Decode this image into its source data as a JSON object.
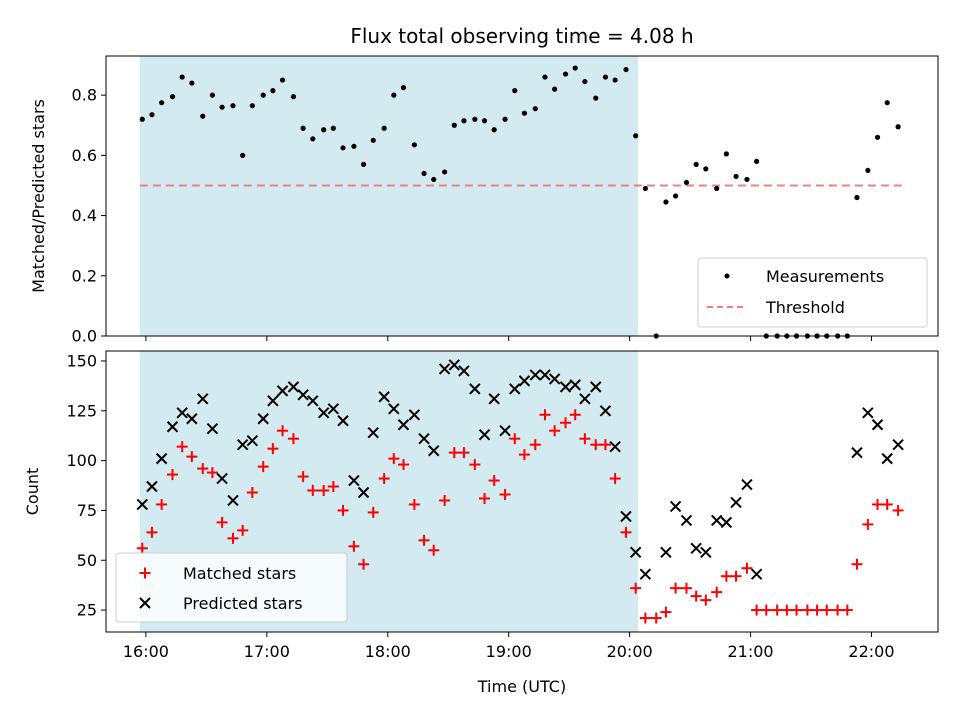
{
  "chart_data": [
    {
      "type": "scatter",
      "title": "Flux total observing time = 4.08 h",
      "xlabel": "",
      "ylabel": "Matched/Predicted stars",
      "ylim": [
        0,
        0.93
      ],
      "yticks": [
        0.0,
        0.2,
        0.4,
        0.6,
        0.8
      ],
      "ytick_labels": [
        "0.0",
        "0.2",
        "0.4",
        "0.6",
        "0.8"
      ],
      "shaded_x_range": [
        15.95,
        20.07
      ],
      "shade_color": "#d3eaf1",
      "legend": {
        "location": "lower-right",
        "entries": [
          "Measurements",
          "Threshold"
        ]
      },
      "threshold": {
        "name": "Threshold",
        "value": 0.5,
        "x_range": [
          15.95,
          22.25
        ],
        "color": "#f08080"
      },
      "series": [
        {
          "name": "Measurements",
          "marker": "dot",
          "color": "#000000",
          "points": [
            [
              15.97,
              0.72
            ],
            [
              16.05,
              0.735
            ],
            [
              16.13,
              0.775
            ],
            [
              16.22,
              0.795
            ],
            [
              16.3,
              0.86
            ],
            [
              16.38,
              0.84
            ],
            [
              16.47,
              0.73
            ],
            [
              16.55,
              0.8
            ],
            [
              16.63,
              0.76
            ],
            [
              16.72,
              0.765
            ],
            [
              16.8,
              0.6
            ],
            [
              16.88,
              0.765
            ],
            [
              16.97,
              0.8
            ],
            [
              17.05,
              0.815
            ],
            [
              17.13,
              0.85
            ],
            [
              17.22,
              0.795
            ],
            [
              17.3,
              0.69
            ],
            [
              17.38,
              0.655
            ],
            [
              17.47,
              0.685
            ],
            [
              17.55,
              0.69
            ],
            [
              17.63,
              0.625
            ],
            [
              17.72,
              0.63
            ],
            [
              17.8,
              0.57
            ],
            [
              17.88,
              0.65
            ],
            [
              17.97,
              0.69
            ],
            [
              18.05,
              0.8
            ],
            [
              18.13,
              0.825
            ],
            [
              18.22,
              0.635
            ],
            [
              18.3,
              0.54
            ],
            [
              18.38,
              0.52
            ],
            [
              18.47,
              0.545
            ],
            [
              18.55,
              0.7
            ],
            [
              18.63,
              0.715
            ],
            [
              18.72,
              0.72
            ],
            [
              18.8,
              0.715
            ],
            [
              18.88,
              0.685
            ],
            [
              18.97,
              0.72
            ],
            [
              19.05,
              0.815
            ],
            [
              19.13,
              0.74
            ],
            [
              19.22,
              0.755
            ],
            [
              19.3,
              0.86
            ],
            [
              19.38,
              0.82
            ],
            [
              19.47,
              0.87
            ],
            [
              19.55,
              0.89
            ],
            [
              19.63,
              0.845
            ],
            [
              19.72,
              0.79
            ],
            [
              19.8,
              0.86
            ],
            [
              19.88,
              0.85
            ],
            [
              19.97,
              0.885
            ],
            [
              20.05,
              0.665
            ],
            [
              20.13,
              0.49
            ],
            [
              20.22,
              0.0
            ],
            [
              20.3,
              0.445
            ],
            [
              20.38,
              0.465
            ],
            [
              20.47,
              0.51
            ],
            [
              20.55,
              0.57
            ],
            [
              20.63,
              0.555
            ],
            [
              20.72,
              0.49
            ],
            [
              20.8,
              0.605
            ],
            [
              20.88,
              0.53
            ],
            [
              20.97,
              0.52
            ],
            [
              21.05,
              0.58
            ],
            [
              21.13,
              0.0
            ],
            [
              21.22,
              0.0
            ],
            [
              21.3,
              0.0
            ],
            [
              21.38,
              0.0
            ],
            [
              21.47,
              0.0
            ],
            [
              21.55,
              0.0
            ],
            [
              21.63,
              0.0
            ],
            [
              21.72,
              0.0
            ],
            [
              21.8,
              0.0
            ],
            [
              21.88,
              0.46
            ],
            [
              21.97,
              0.55
            ],
            [
              22.05,
              0.66
            ],
            [
              22.13,
              0.775
            ],
            [
              22.22,
              0.695
            ]
          ]
        }
      ]
    },
    {
      "type": "scatter",
      "title": "",
      "xlabel": "Time (UTC)",
      "ylabel": "Count",
      "xlim": [
        15.67,
        22.55
      ],
      "ylim": [
        14,
        155
      ],
      "yticks": [
        25,
        50,
        75,
        100,
        125,
        150
      ],
      "ytick_labels": [
        "25",
        "50",
        "75",
        "100",
        "125",
        "150"
      ],
      "xticks": [
        16,
        17,
        18,
        19,
        20,
        21,
        22
      ],
      "xtick_labels": [
        "16:00",
        "17:00",
        "18:00",
        "19:00",
        "20:00",
        "21:00",
        "22:00"
      ],
      "shaded_x_range": [
        15.95,
        20.07
      ],
      "shade_color": "#d3eaf1",
      "legend": {
        "location": "lower-left",
        "entries": [
          "Matched stars",
          "Predicted stars"
        ]
      },
      "series": [
        {
          "name": "Matched stars",
          "marker": "plus",
          "color": "#ff0000",
          "points": [
            [
              15.97,
              56
            ],
            [
              16.05,
              64
            ],
            [
              16.13,
              78
            ],
            [
              16.22,
              93
            ],
            [
              16.3,
              107
            ],
            [
              16.38,
              102
            ],
            [
              16.47,
              96
            ],
            [
              16.55,
              94
            ],
            [
              16.63,
              69
            ],
            [
              16.72,
              61
            ],
            [
              16.8,
              65
            ],
            [
              16.88,
              84
            ],
            [
              16.97,
              97
            ],
            [
              17.05,
              106
            ],
            [
              17.13,
              115
            ],
            [
              17.22,
              111
            ],
            [
              17.3,
              92
            ],
            [
              17.38,
              85
            ],
            [
              17.47,
              85
            ],
            [
              17.55,
              87
            ],
            [
              17.63,
              75
            ],
            [
              17.72,
              57
            ],
            [
              17.8,
              48
            ],
            [
              17.88,
              74
            ],
            [
              17.97,
              91
            ],
            [
              18.05,
              101
            ],
            [
              18.13,
              98
            ],
            [
              18.22,
              78
            ],
            [
              18.3,
              60
            ],
            [
              18.38,
              55
            ],
            [
              18.47,
              80
            ],
            [
              18.55,
              104
            ],
            [
              18.63,
              104
            ],
            [
              18.72,
              98
            ],
            [
              18.8,
              81
            ],
            [
              18.88,
              90
            ],
            [
              18.97,
              83
            ],
            [
              19.05,
              111
            ],
            [
              19.13,
              103
            ],
            [
              19.22,
              108
            ],
            [
              19.3,
              123
            ],
            [
              19.38,
              115
            ],
            [
              19.47,
              119
            ],
            [
              19.55,
              123
            ],
            [
              19.63,
              111
            ],
            [
              19.72,
              108
            ],
            [
              19.8,
              108
            ],
            [
              19.88,
              91
            ],
            [
              19.97,
              64
            ],
            [
              20.05,
              36
            ],
            [
              20.13,
              21
            ],
            [
              20.22,
              21
            ],
            [
              20.3,
              24
            ],
            [
              20.38,
              36
            ],
            [
              20.47,
              36
            ],
            [
              20.55,
              32
            ],
            [
              20.63,
              30
            ],
            [
              20.72,
              34
            ],
            [
              20.8,
              42
            ],
            [
              20.88,
              42
            ],
            [
              20.97,
              46
            ],
            [
              21.05,
              25
            ],
            [
              21.13,
              25
            ],
            [
              21.22,
              25
            ],
            [
              21.3,
              25
            ],
            [
              21.38,
              25
            ],
            [
              21.47,
              25
            ],
            [
              21.55,
              25
            ],
            [
              21.63,
              25
            ],
            [
              21.72,
              25
            ],
            [
              21.8,
              25
            ],
            [
              21.88,
              48
            ],
            [
              21.97,
              68
            ],
            [
              22.05,
              78
            ],
            [
              22.13,
              78
            ],
            [
              22.22,
              75
            ]
          ]
        },
        {
          "name": "Predicted stars",
          "marker": "x",
          "color": "#000000",
          "points": [
            [
              15.97,
              78
            ],
            [
              16.05,
              87
            ],
            [
              16.13,
              101
            ],
            [
              16.22,
              117
            ],
            [
              16.3,
              124
            ],
            [
              16.38,
              121
            ],
            [
              16.47,
              131
            ],
            [
              16.55,
              116
            ],
            [
              16.63,
              91
            ],
            [
              16.72,
              80
            ],
            [
              16.8,
              108
            ],
            [
              16.88,
              110
            ],
            [
              16.97,
              121
            ],
            [
              17.05,
              130
            ],
            [
              17.13,
              135
            ],
            [
              17.22,
              137
            ],
            [
              17.3,
              133
            ],
            [
              17.38,
              130
            ],
            [
              17.47,
              124
            ],
            [
              17.55,
              126
            ],
            [
              17.63,
              120
            ],
            [
              17.72,
              90
            ],
            [
              17.8,
              84
            ],
            [
              17.88,
              114
            ],
            [
              17.97,
              132
            ],
            [
              18.05,
              126
            ],
            [
              18.13,
              118
            ],
            [
              18.22,
              123
            ],
            [
              18.3,
              111
            ],
            [
              18.38,
              105
            ],
            [
              18.47,
              146
            ],
            [
              18.55,
              148
            ],
            [
              18.63,
              145
            ],
            [
              18.72,
              136
            ],
            [
              18.8,
              113
            ],
            [
              18.88,
              131
            ],
            [
              18.97,
              115
            ],
            [
              19.05,
              136
            ],
            [
              19.13,
              140
            ],
            [
              19.22,
              143
            ],
            [
              19.3,
              143
            ],
            [
              19.38,
              141
            ],
            [
              19.47,
              137
            ],
            [
              19.55,
              138
            ],
            [
              19.63,
              131
            ],
            [
              19.72,
              137
            ],
            [
              19.8,
              125
            ],
            [
              19.88,
              107
            ],
            [
              19.97,
              72
            ],
            [
              20.05,
              54
            ],
            [
              20.13,
              43
            ],
            [
              20.3,
              54
            ],
            [
              20.38,
              77
            ],
            [
              20.47,
              70
            ],
            [
              20.55,
              56
            ],
            [
              20.63,
              54
            ],
            [
              20.72,
              70
            ],
            [
              20.8,
              69
            ],
            [
              20.88,
              79
            ],
            [
              20.97,
              88
            ],
            [
              21.05,
              43
            ],
            [
              21.88,
              104
            ],
            [
              21.97,
              124
            ],
            [
              22.05,
              118
            ],
            [
              22.13,
              101
            ],
            [
              22.22,
              108
            ]
          ]
        }
      ]
    }
  ]
}
